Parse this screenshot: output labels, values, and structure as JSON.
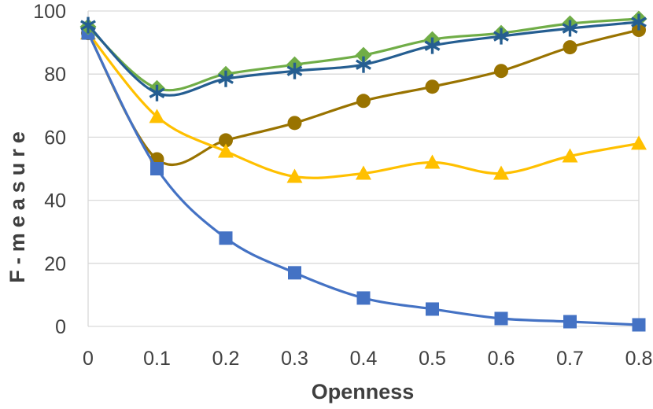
{
  "chart_data": {
    "type": "line",
    "title": "",
    "xlabel": "Openness",
    "ylabel": "F-measure",
    "x": [
      0,
      0.1,
      0.2,
      0.3,
      0.4,
      0.5,
      0.6,
      0.7,
      0.8
    ],
    "xticklabels": [
      "0",
      "0.1",
      "0.2",
      "0.3",
      "0.4",
      "0.5",
      "0.6",
      "0.7",
      "0.8"
    ],
    "yticks": [
      0,
      20,
      40,
      60,
      80,
      100
    ],
    "yticklabels": [
      "0",
      "20",
      "40",
      "60",
      "80",
      "100"
    ],
    "xlim": [
      0,
      0.8
    ],
    "ylim": [
      0,
      100
    ],
    "grid": "horizontal",
    "legend_position": "none",
    "smooth_lines": true,
    "series": [
      {
        "name": "dark-gold-circles",
        "marker": "circle",
        "color": "#997300",
        "values": [
          93,
          53,
          59,
          64.5,
          71.5,
          76,
          81,
          88.5,
          94
        ]
      },
      {
        "name": "gold-triangles",
        "marker": "triangle",
        "color": "#FFC000",
        "values": [
          93,
          66.5,
          55.5,
          47.5,
          48.5,
          52,
          48.5,
          54,
          58
        ]
      },
      {
        "name": "blue-squares",
        "marker": "square",
        "color": "#4472C4",
        "values": [
          93,
          50,
          28,
          17,
          9,
          5.5,
          2.5,
          1.5,
          0.5
        ]
      },
      {
        "name": "green-diamonds",
        "marker": "diamond",
        "color": "#70AD47",
        "values": [
          95,
          75.5,
          80,
          83,
          86,
          91,
          93,
          96,
          97.5
        ]
      },
      {
        "name": "dark-blue-asterisks",
        "marker": "asterisk",
        "color": "#255E91",
        "values": [
          95.5,
          74,
          78.5,
          81,
          83,
          89,
          92,
          94.5,
          96.5
        ]
      }
    ]
  },
  "style": {
    "background": "#FFFFFF",
    "gridline_color": "#D9D9D9",
    "tick_label_color": "#404040",
    "axis_title_color": "#3F3F3F"
  }
}
